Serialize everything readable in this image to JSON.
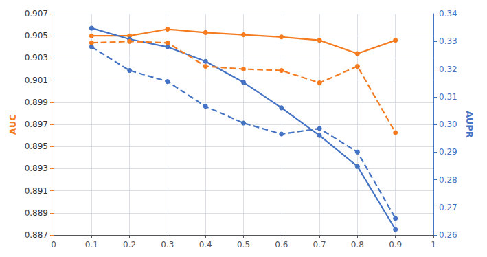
{
  "chart_data": {
    "type": "line",
    "x": [
      0.1,
      0.2,
      0.3,
      0.4,
      0.5,
      0.6,
      0.7,
      0.8,
      0.9
    ],
    "xlim": [
      0,
      1
    ],
    "xticks": [
      0,
      0.1,
      0.2,
      0.3,
      0.4,
      0.5,
      0.6,
      0.7,
      0.8,
      0.9,
      1
    ],
    "ylabel": "AUC",
    "ylim": [
      0.887,
      0.907
    ],
    "yticks": [
      0.887,
      0.889,
      0.891,
      0.893,
      0.895,
      0.897,
      0.899,
      0.901,
      0.903,
      0.905,
      0.907
    ],
    "y2label": "AUPR",
    "y2lim": [
      0.26,
      0.34
    ],
    "y2ticks": [
      0.26,
      0.27,
      0.28,
      0.29,
      {
        "value": 0.3,
        "label": "0.30"
      },
      0.31,
      0.32,
      0.33,
      0.34
    ],
    "grid": true,
    "series": [
      {
        "color": "#F47B20",
        "line_style": "solid",
        "marker": "circle",
        "values": [
          0.905,
          0.905,
          0.9056,
          0.9053,
          0.9051,
          0.9049,
          0.9046,
          0.9034,
          0.9046
        ]
      },
      {
        "color": "#4472C4",
        "line_style": "solid",
        "marker": "circle",
        "values": [
          0.9057,
          0.9047,
          0.904,
          0.9027,
          0.9008,
          0.8985,
          0.896,
          0.8932,
          0.8875
        ]
      },
      {
        "color": "#F47B20",
        "line_style": "dashed",
        "marker": "circle",
        "axis": "y2",
        "values": [
          0.3295,
          0.33,
          0.3295,
          0.321,
          0.32,
          0.3195,
          0.315,
          0.321,
          0.297
        ]
      },
      {
        "color": "#4472C4",
        "line_style": "dashed",
        "marker": "circle",
        "axis": "y2",
        "values": [
          0.328,
          0.3195,
          0.3155,
          0.3065,
          0.3005,
          0.2965,
          0.2985,
          0.29,
          0.266
        ]
      }
    ]
  }
}
